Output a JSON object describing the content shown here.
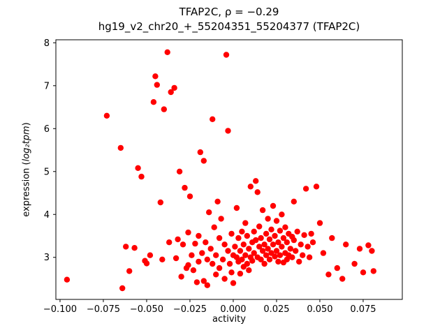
{
  "chart_data": {
    "type": "scatter",
    "title": "TFAP2C, ρ = −0.29",
    "subtitle": "hg19_v2_chr20_+_55204351_55204377 (TFAP2C)",
    "rho": -0.29,
    "xlabel": "activity",
    "ylabel": "expression (log₂tpm)",
    "ylabel_parts": {
      "prefix": "expression (",
      "math": "log₂tpm",
      "suffix": ")"
    },
    "legend": "none",
    "grid": false,
    "marker_color": "#ff0000",
    "marker_radius": 4.2,
    "xlim": [
      -0.1024,
      0.0976
    ],
    "ylim": [
      2.02,
      8.07
    ],
    "xticks": {
      "values": [
        -0.1,
        -0.075,
        -0.05,
        -0.025,
        0.0,
        0.025,
        0.05,
        0.075
      ],
      "labels": [
        "−0.100",
        "−0.075",
        "−0.050",
        "−0.025",
        "0.000",
        "0.025",
        "0.050",
        "0.075"
      ]
    },
    "yticks": {
      "values": [
        3,
        4,
        5,
        6,
        7,
        8
      ],
      "labels": [
        "3",
        "4",
        "5",
        "6",
        "7",
        "8"
      ]
    },
    "points": [
      [
        -0.096,
        2.48
      ],
      [
        -0.073,
        6.3
      ],
      [
        -0.065,
        5.55
      ],
      [
        -0.064,
        2.28
      ],
      [
        -0.062,
        3.25
      ],
      [
        -0.06,
        2.68
      ],
      [
        -0.057,
        3.22
      ],
      [
        -0.055,
        5.08
      ],
      [
        -0.053,
        4.88
      ],
      [
        -0.051,
        2.92
      ],
      [
        -0.05,
        2.86
      ],
      [
        -0.048,
        3.05
      ],
      [
        -0.046,
        6.62
      ],
      [
        -0.045,
        7.22
      ],
      [
        -0.044,
        7.02
      ],
      [
        -0.042,
        4.28
      ],
      [
        -0.041,
        2.95
      ],
      [
        -0.04,
        6.45
      ],
      [
        -0.038,
        7.78
      ],
      [
        -0.037,
        3.35
      ],
      [
        -0.036,
        6.85
      ],
      [
        -0.034,
        6.95
      ],
      [
        -0.033,
        2.98
      ],
      [
        -0.032,
        3.42
      ],
      [
        -0.031,
        5.0
      ],
      [
        -0.03,
        2.55
      ],
      [
        -0.029,
        3.3
      ],
      [
        -0.028,
        4.62
      ],
      [
        -0.027,
        2.75
      ],
      [
        -0.026,
        3.58
      ],
      [
        -0.026,
        2.82
      ],
      [
        -0.025,
        4.42
      ],
      [
        -0.024,
        3.05
      ],
      [
        -0.023,
        2.7
      ],
      [
        -0.022,
        3.32
      ],
      [
        -0.021,
        2.42
      ],
      [
        -0.02,
        3.5
      ],
      [
        -0.02,
        2.9
      ],
      [
        -0.019,
        5.45
      ],
      [
        -0.018,
        3.1
      ],
      [
        -0.017,
        5.25
      ],
      [
        -0.017,
        2.45
      ],
      [
        -0.016,
        3.35
      ],
      [
        -0.015,
        2.95
      ],
      [
        -0.015,
        2.35
      ],
      [
        -0.014,
        4.05
      ],
      [
        -0.013,
        3.2
      ],
      [
        -0.012,
        6.22
      ],
      [
        -0.012,
        2.85
      ],
      [
        -0.011,
        3.7
      ],
      [
        -0.01,
        2.6
      ],
      [
        -0.01,
        3.05
      ],
      [
        -0.009,
        4.3
      ],
      [
        -0.008,
        3.45
      ],
      [
        -0.008,
        2.75
      ],
      [
        -0.007,
        3.9
      ],
      [
        -0.006,
        2.95
      ],
      [
        -0.005,
        3.3
      ],
      [
        -0.005,
        2.5
      ],
      [
        -0.004,
        7.72
      ],
      [
        -0.003,
        5.95
      ],
      [
        -0.003,
        3.15
      ],
      [
        -0.002,
        2.85
      ],
      [
        -0.001,
        3.55
      ],
      [
        -0.001,
        2.65
      ],
      [
        0.0,
        3.05
      ],
      [
        0.0,
        2.4
      ],
      [
        0.001,
        3.25
      ],
      [
        0.002,
        3.0
      ],
      [
        0.002,
        4.15
      ],
      [
        0.003,
        3.45
      ],
      [
        0.003,
        2.9
      ],
      [
        0.004,
        3.15
      ],
      [
        0.004,
        2.62
      ],
      [
        0.005,
        3.6
      ],
      [
        0.005,
        2.95
      ],
      [
        0.006,
        3.3
      ],
      [
        0.006,
        2.78
      ],
      [
        0.007,
        3.05
      ],
      [
        0.007,
        3.8
      ],
      [
        0.008,
        2.85
      ],
      [
        0.008,
        3.5
      ],
      [
        0.009,
        3.2
      ],
      [
        0.009,
        2.7
      ],
      [
        0.01,
        4.65
      ],
      [
        0.01,
        3.0
      ],
      [
        0.011,
        3.35
      ],
      [
        0.011,
        2.92
      ],
      [
        0.012,
        3.6
      ],
      [
        0.012,
        3.1
      ],
      [
        0.013,
        4.78
      ],
      [
        0.013,
        3.4
      ],
      [
        0.014,
        3.0
      ],
      [
        0.014,
        4.52
      ],
      [
        0.015,
        3.25
      ],
      [
        0.015,
        3.72
      ],
      [
        0.016,
        2.95
      ],
      [
        0.016,
        3.45
      ],
      [
        0.017,
        3.15
      ],
      [
        0.017,
        4.1
      ],
      [
        0.018,
        3.3
      ],
      [
        0.018,
        2.85
      ],
      [
        0.019,
        3.55
      ],
      [
        0.019,
        3.05
      ],
      [
        0.02,
        3.9
      ],
      [
        0.02,
        3.2
      ],
      [
        0.021,
        3.42
      ],
      [
        0.021,
        2.95
      ],
      [
        0.022,
        3.65
      ],
      [
        0.022,
        3.1
      ],
      [
        0.023,
        3.3
      ],
      [
        0.023,
        4.2
      ],
      [
        0.024,
        3.02
      ],
      [
        0.024,
        3.5
      ],
      [
        0.025,
        3.15
      ],
      [
        0.025,
        3.85
      ],
      [
        0.026,
        3.35
      ],
      [
        0.026,
        2.9
      ],
      [
        0.027,
        3.62
      ],
      [
        0.027,
        3.05
      ],
      [
        0.028,
        3.25
      ],
      [
        0.028,
        4.0
      ],
      [
        0.029,
        3.45
      ],
      [
        0.029,
        2.88
      ],
      [
        0.03,
        3.1
      ],
      [
        0.03,
        3.7
      ],
      [
        0.031,
        2.95
      ],
      [
        0.031,
        3.35
      ],
      [
        0.032,
        3.55
      ],
      [
        0.032,
        3.05
      ],
      [
        0.033,
        3.2
      ],
      [
        0.034,
        3.0
      ],
      [
        0.034,
        3.48
      ],
      [
        0.035,
        4.3
      ],
      [
        0.035,
        3.4
      ],
      [
        0.036,
        3.15
      ],
      [
        0.037,
        3.6
      ],
      [
        0.038,
        2.9
      ],
      [
        0.039,
        3.3
      ],
      [
        0.04,
        3.05
      ],
      [
        0.041,
        3.52
      ],
      [
        0.042,
        4.6
      ],
      [
        0.043,
        3.25
      ],
      [
        0.044,
        3.0
      ],
      [
        0.045,
        3.55
      ],
      [
        0.046,
        3.35
      ],
      [
        0.048,
        4.65
      ],
      [
        0.05,
        3.8
      ],
      [
        0.052,
        3.1
      ],
      [
        0.055,
        2.6
      ],
      [
        0.057,
        3.45
      ],
      [
        0.06,
        2.75
      ],
      [
        0.063,
        2.5
      ],
      [
        0.065,
        3.3
      ],
      [
        0.07,
        2.85
      ],
      [
        0.073,
        3.2
      ],
      [
        0.075,
        2.65
      ],
      [
        0.078,
        3.28
      ],
      [
        0.08,
        3.15
      ],
      [
        0.081,
        2.68
      ]
    ]
  }
}
